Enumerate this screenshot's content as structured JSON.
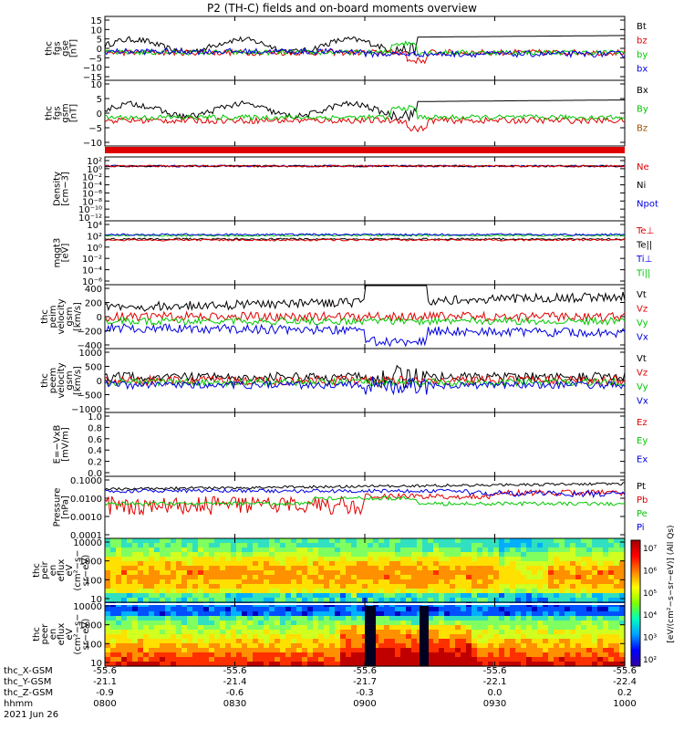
{
  "title": "P2 (TH-C) fields and on-board moments overview",
  "chart_data": {
    "type": "line",
    "date": "2021 Jun 26",
    "x_ticks": [
      "0800",
      "0830",
      "0900",
      "0930",
      "1000"
    ],
    "ephemeris": [
      {
        "label": "thc_X-GSM",
        "values": [
          "-55.6",
          "-55.6",
          "-55.6",
          "-55.6",
          "-55.6"
        ]
      },
      {
        "label": "thc_Y-GSM",
        "values": [
          "-21.1",
          "-21.4",
          "-21.7",
          "-22.1",
          "-22.4"
        ]
      },
      {
        "label": "thc_Z-GSM",
        "values": [
          "-0.9",
          "-0.6",
          "-0.3",
          "0.0",
          "0.2"
        ]
      },
      {
        "label": "hhmm",
        "values": [
          "0800",
          "0830",
          "0900",
          "0930",
          "1000"
        ]
      }
    ],
    "panels": [
      {
        "id": "fgs_gse",
        "ylabel": [
          "thc",
          "fgs",
          "gse",
          "[nT]"
        ],
        "yticks": [
          "15",
          "10",
          "5",
          "0",
          "−5",
          "−10",
          "−15"
        ],
        "legend": [
          {
            "name": "Bt",
            "color": "#000000"
          },
          {
            "name": "bz",
            "color": "#e00000"
          },
          {
            "name": "by",
            "color": "#00c800"
          },
          {
            "name": "bx",
            "color": "#0000e0"
          }
        ]
      },
      {
        "id": "fgs_gsm",
        "ylabel": [
          "thc",
          "fgs",
          "gsm",
          "[nT]"
        ],
        "yticks": [
          "10",
          "5",
          "0",
          "−5",
          "−10"
        ],
        "legend": [
          {
            "name": "Bx",
            "color": "#000000"
          },
          {
            "name": "By",
            "color": "#00c800"
          },
          {
            "name": "Bz",
            "color": "#a05000"
          }
        ]
      },
      {
        "id": "density",
        "ylabel": [
          "Density",
          "[cm−3]"
        ],
        "yticks": [
          "10²",
          "10⁰",
          "10⁻²",
          "10⁻⁴",
          "10⁻⁶",
          "10⁻⁸",
          "10⁻¹⁰",
          "10⁻¹²"
        ],
        "legend": [
          {
            "name": "Ne",
            "color": "#e00000"
          },
          {
            "name": "Ni",
            "color": "#000000"
          },
          {
            "name": "Npot",
            "color": "#0000e0"
          }
        ]
      },
      {
        "id": "temperature",
        "ylabel": [
          "mqgt3",
          "[eV]"
        ],
        "yticks": [
          "10⁴",
          "10²",
          "10⁰",
          "10⁻²",
          "10⁻⁴",
          "10⁻⁶"
        ],
        "legend": [
          {
            "name": "Te⊥",
            "color": "#e00000"
          },
          {
            "name": "Te||",
            "color": "#000000"
          },
          {
            "name": "Ti⊥",
            "color": "#0000e0"
          },
          {
            "name": "Ti||",
            "color": "#00c800"
          }
        ]
      },
      {
        "id": "peim_velocity",
        "ylabel": [
          "thc",
          "peim",
          "velocity",
          "gsm",
          "[km/s]"
        ],
        "yticks": [
          "400",
          "200",
          "0",
          "−200",
          "−400"
        ],
        "legend": [
          {
            "name": "Vt",
            "color": "#000000"
          },
          {
            "name": "Vz",
            "color": "#e00000"
          },
          {
            "name": "Vy",
            "color": "#00c800"
          },
          {
            "name": "Vx",
            "color": "#0000e0"
          }
        ]
      },
      {
        "id": "peem_velocity",
        "ylabel": [
          "thc",
          "peem",
          "velocity",
          "gsm",
          "[km/s]"
        ],
        "yticks": [
          "1000",
          "500",
          "0",
          "−500",
          "−1000"
        ],
        "legend": [
          {
            "name": "Vt",
            "color": "#000000"
          },
          {
            "name": "Vz",
            "color": "#e00000"
          },
          {
            "name": "Vy",
            "color": "#00c800"
          },
          {
            "name": "Vx",
            "color": "#0000e0"
          }
        ]
      },
      {
        "id": "efield",
        "ylabel": [
          "E=−VxB",
          "[mV/m]"
        ],
        "yticks": [
          "1.0",
          "0.8",
          "0.6",
          "0.4",
          "0.2",
          "0.0"
        ],
        "legend": [
          {
            "name": "Ez",
            "color": "#e00000"
          },
          {
            "name": "Ey",
            "color": "#00c800"
          },
          {
            "name": "Ex",
            "color": "#0000e0"
          }
        ]
      },
      {
        "id": "pressure",
        "ylabel": [
          "Pressure",
          "[nPa]"
        ],
        "yticks": [
          "0.1000",
          "0.0100",
          "0.0010",
          "0.0001"
        ],
        "legend": [
          {
            "name": "Pt",
            "color": "#000000"
          },
          {
            "name": "Pb",
            "color": "#e00000"
          },
          {
            "name": "Pe",
            "color": "#00c800"
          },
          {
            "name": "Pi",
            "color": "#0000e0"
          }
        ]
      },
      {
        "id": "peir_spectrogram",
        "ylabel": [
          "thc",
          "peir",
          "en",
          "eflux",
          "eV",
          "(cm²−s−",
          "sr−eV)"
        ],
        "yticks": [
          "10000",
          "1000",
          "100",
          "10"
        ]
      },
      {
        "id": "peer_spectrogram",
        "ylabel": [
          "thc",
          "peer",
          "en",
          "eflux",
          "eV",
          "(cm²−s−",
          "sr−eV)"
        ],
        "yticks": [
          "10000",
          "1000",
          "100",
          "10"
        ]
      }
    ],
    "colorbar_ticks": [
      "10⁷",
      "10⁶",
      "10⁵",
      "10⁴",
      "10³",
      "10²"
    ],
    "colorbar_label": "[eV/(cm²−s−sr−eV)] (All Qs)"
  }
}
